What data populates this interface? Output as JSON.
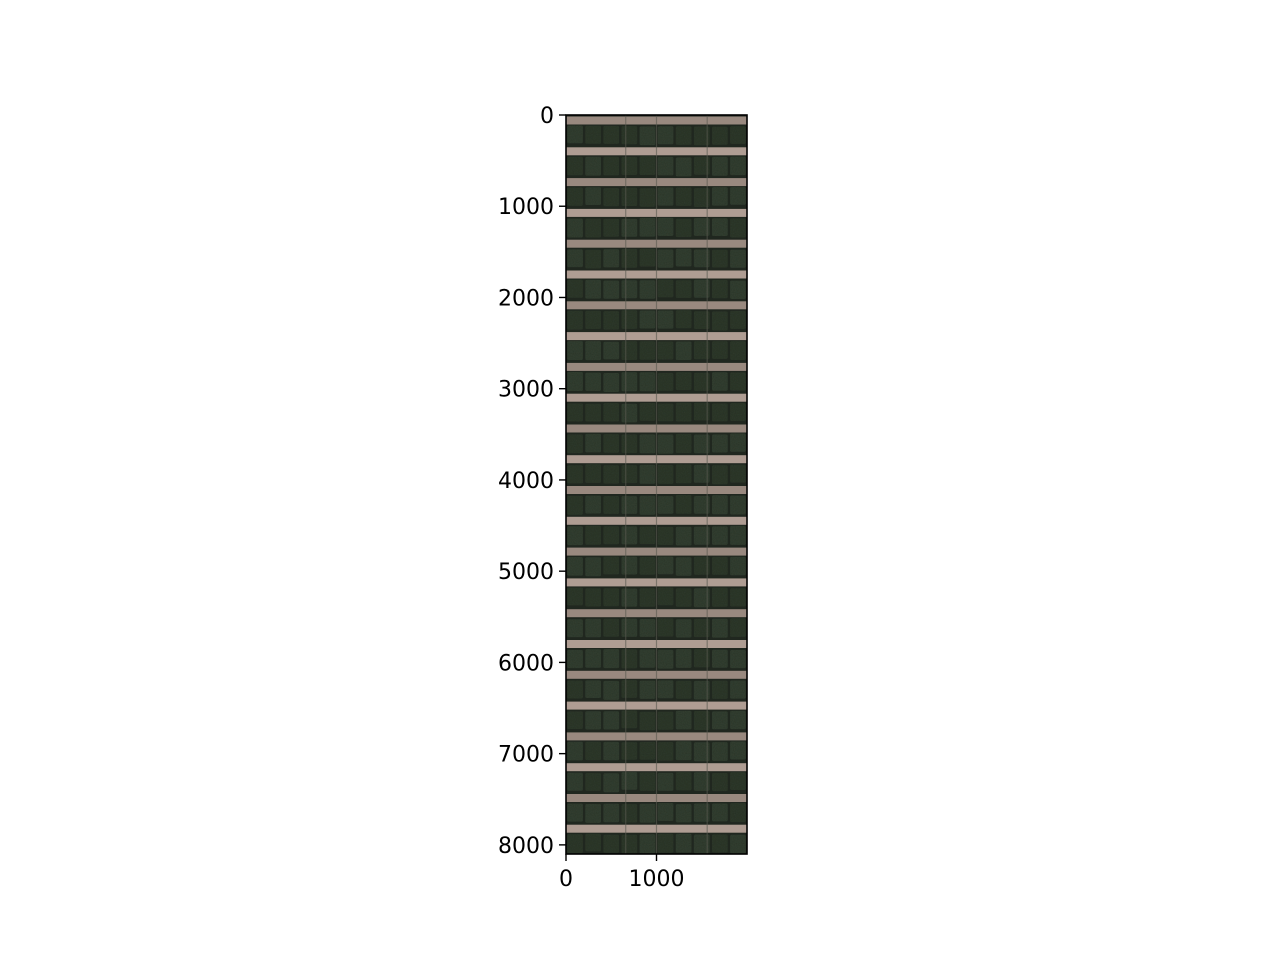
{
  "image": {
    "description_colors": {
      "crop_green": "#2f3a2c",
      "crop_dark": "#20271f",
      "soil": "#b7a39a",
      "soil_dark": "#a08e85"
    },
    "x_axis": {
      "range": [
        0,
        2000
      ],
      "ticks": [
        {
          "value": 0,
          "label": "0"
        },
        {
          "value": 1000,
          "label": "1000"
        }
      ]
    },
    "y_axis": {
      "range": [
        0,
        8100
      ],
      "inverted": true,
      "ticks": [
        {
          "value": 0,
          "label": "0"
        },
        {
          "value": 1000,
          "label": "1000"
        },
        {
          "value": 2000,
          "label": "2000"
        },
        {
          "value": 3000,
          "label": "3000"
        },
        {
          "value": 4000,
          "label": "4000"
        },
        {
          "value": 5000,
          "label": "5000"
        },
        {
          "value": 6000,
          "label": "6000"
        },
        {
          "value": 7000,
          "label": "7000"
        },
        {
          "value": 8000,
          "label": "8000"
        }
      ]
    },
    "soil_strip_count": 24,
    "plant_columns": 10
  }
}
